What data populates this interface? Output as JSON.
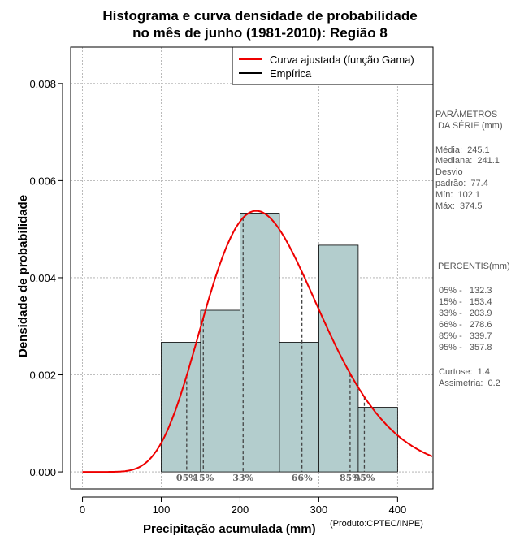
{
  "title_line1": "Histograma e curva densidade de probabilidade",
  "title_line2": "no mês de junho (1981-2010): Região 8",
  "product": "(Produto:CPTEC/INPE)",
  "chart_data": {
    "type": "bar",
    "title": "Histograma e curva densidade de probabilidade no mês de junho (1981-2010): Região 8",
    "xlabel": "Precipitação acumulada (mm)",
    "ylabel": "Densidade de probabilidade",
    "xlim": [
      -15,
      445
    ],
    "ylim": [
      -0.00035,
      0.00875
    ],
    "x_ticks": [
      0,
      100,
      200,
      300,
      400
    ],
    "x_tick_labels": [
      "0",
      "100",
      "200",
      "300",
      "400"
    ],
    "y_ticks": [
      0.0,
      0.002,
      0.004,
      0.006,
      0.008
    ],
    "y_tick_labels": [
      "0.000",
      "0.002",
      "0.004",
      "0.006",
      "0.008"
    ],
    "grid": true,
    "bins": [
      {
        "from": 100,
        "to": 150,
        "density": 0.00267
      },
      {
        "from": 150,
        "to": 200,
        "density": 0.00333
      },
      {
        "from": 200,
        "to": 250,
        "density": 0.00533
      },
      {
        "from": 250,
        "to": 300,
        "density": 0.00267
      },
      {
        "from": 300,
        "to": 350,
        "density": 0.00467
      },
      {
        "from": 350,
        "to": 400,
        "density": 0.00133
      }
    ],
    "bar_color": "#b3cdcd",
    "fitted_curve": {
      "name": "Curva ajustada (função Gama)",
      "shape": 10.0,
      "scale": 24.5,
      "color": "#ee0000"
    },
    "legend": {
      "position": "top-right",
      "entries": [
        {
          "label": "Curva ajustada (função Gama)",
          "color": "#ee0000"
        },
        {
          "label": "Empírica",
          "color": "#000000"
        }
      ]
    },
    "percentile_lines": [
      {
        "label": "05%",
        "value": 132.3
      },
      {
        "label": "15%",
        "value": 153.4
      },
      {
        "label": "33%",
        "value": 203.9
      },
      {
        "label": "66%",
        "value": 278.6
      },
      {
        "label": "85%",
        "value": 339.7
      },
      {
        "label": "95%",
        "value": 357.8
      }
    ]
  },
  "parameters": {
    "heading_1": "PARÂMETROS",
    "heading_2": " DA SÉRIE (mm)",
    "lines": [
      "Média:  245.1",
      "Mediana:  241.1",
      "Desvio",
      "padrão:  77.4",
      "Mín:  102.1",
      "Máx:  374.5"
    ]
  },
  "percentiles": {
    "heading": " PERCENTIS(mm)",
    "lines": [
      "05% -   132.3",
      "15% -   153.4",
      "33% -   203.9",
      "66% -   278.6",
      "85% -   339.7",
      "95% -   357.8"
    ],
    "curtose": "Curtose:  1.4",
    "assimetria": "Assimetria:  0.2"
  }
}
